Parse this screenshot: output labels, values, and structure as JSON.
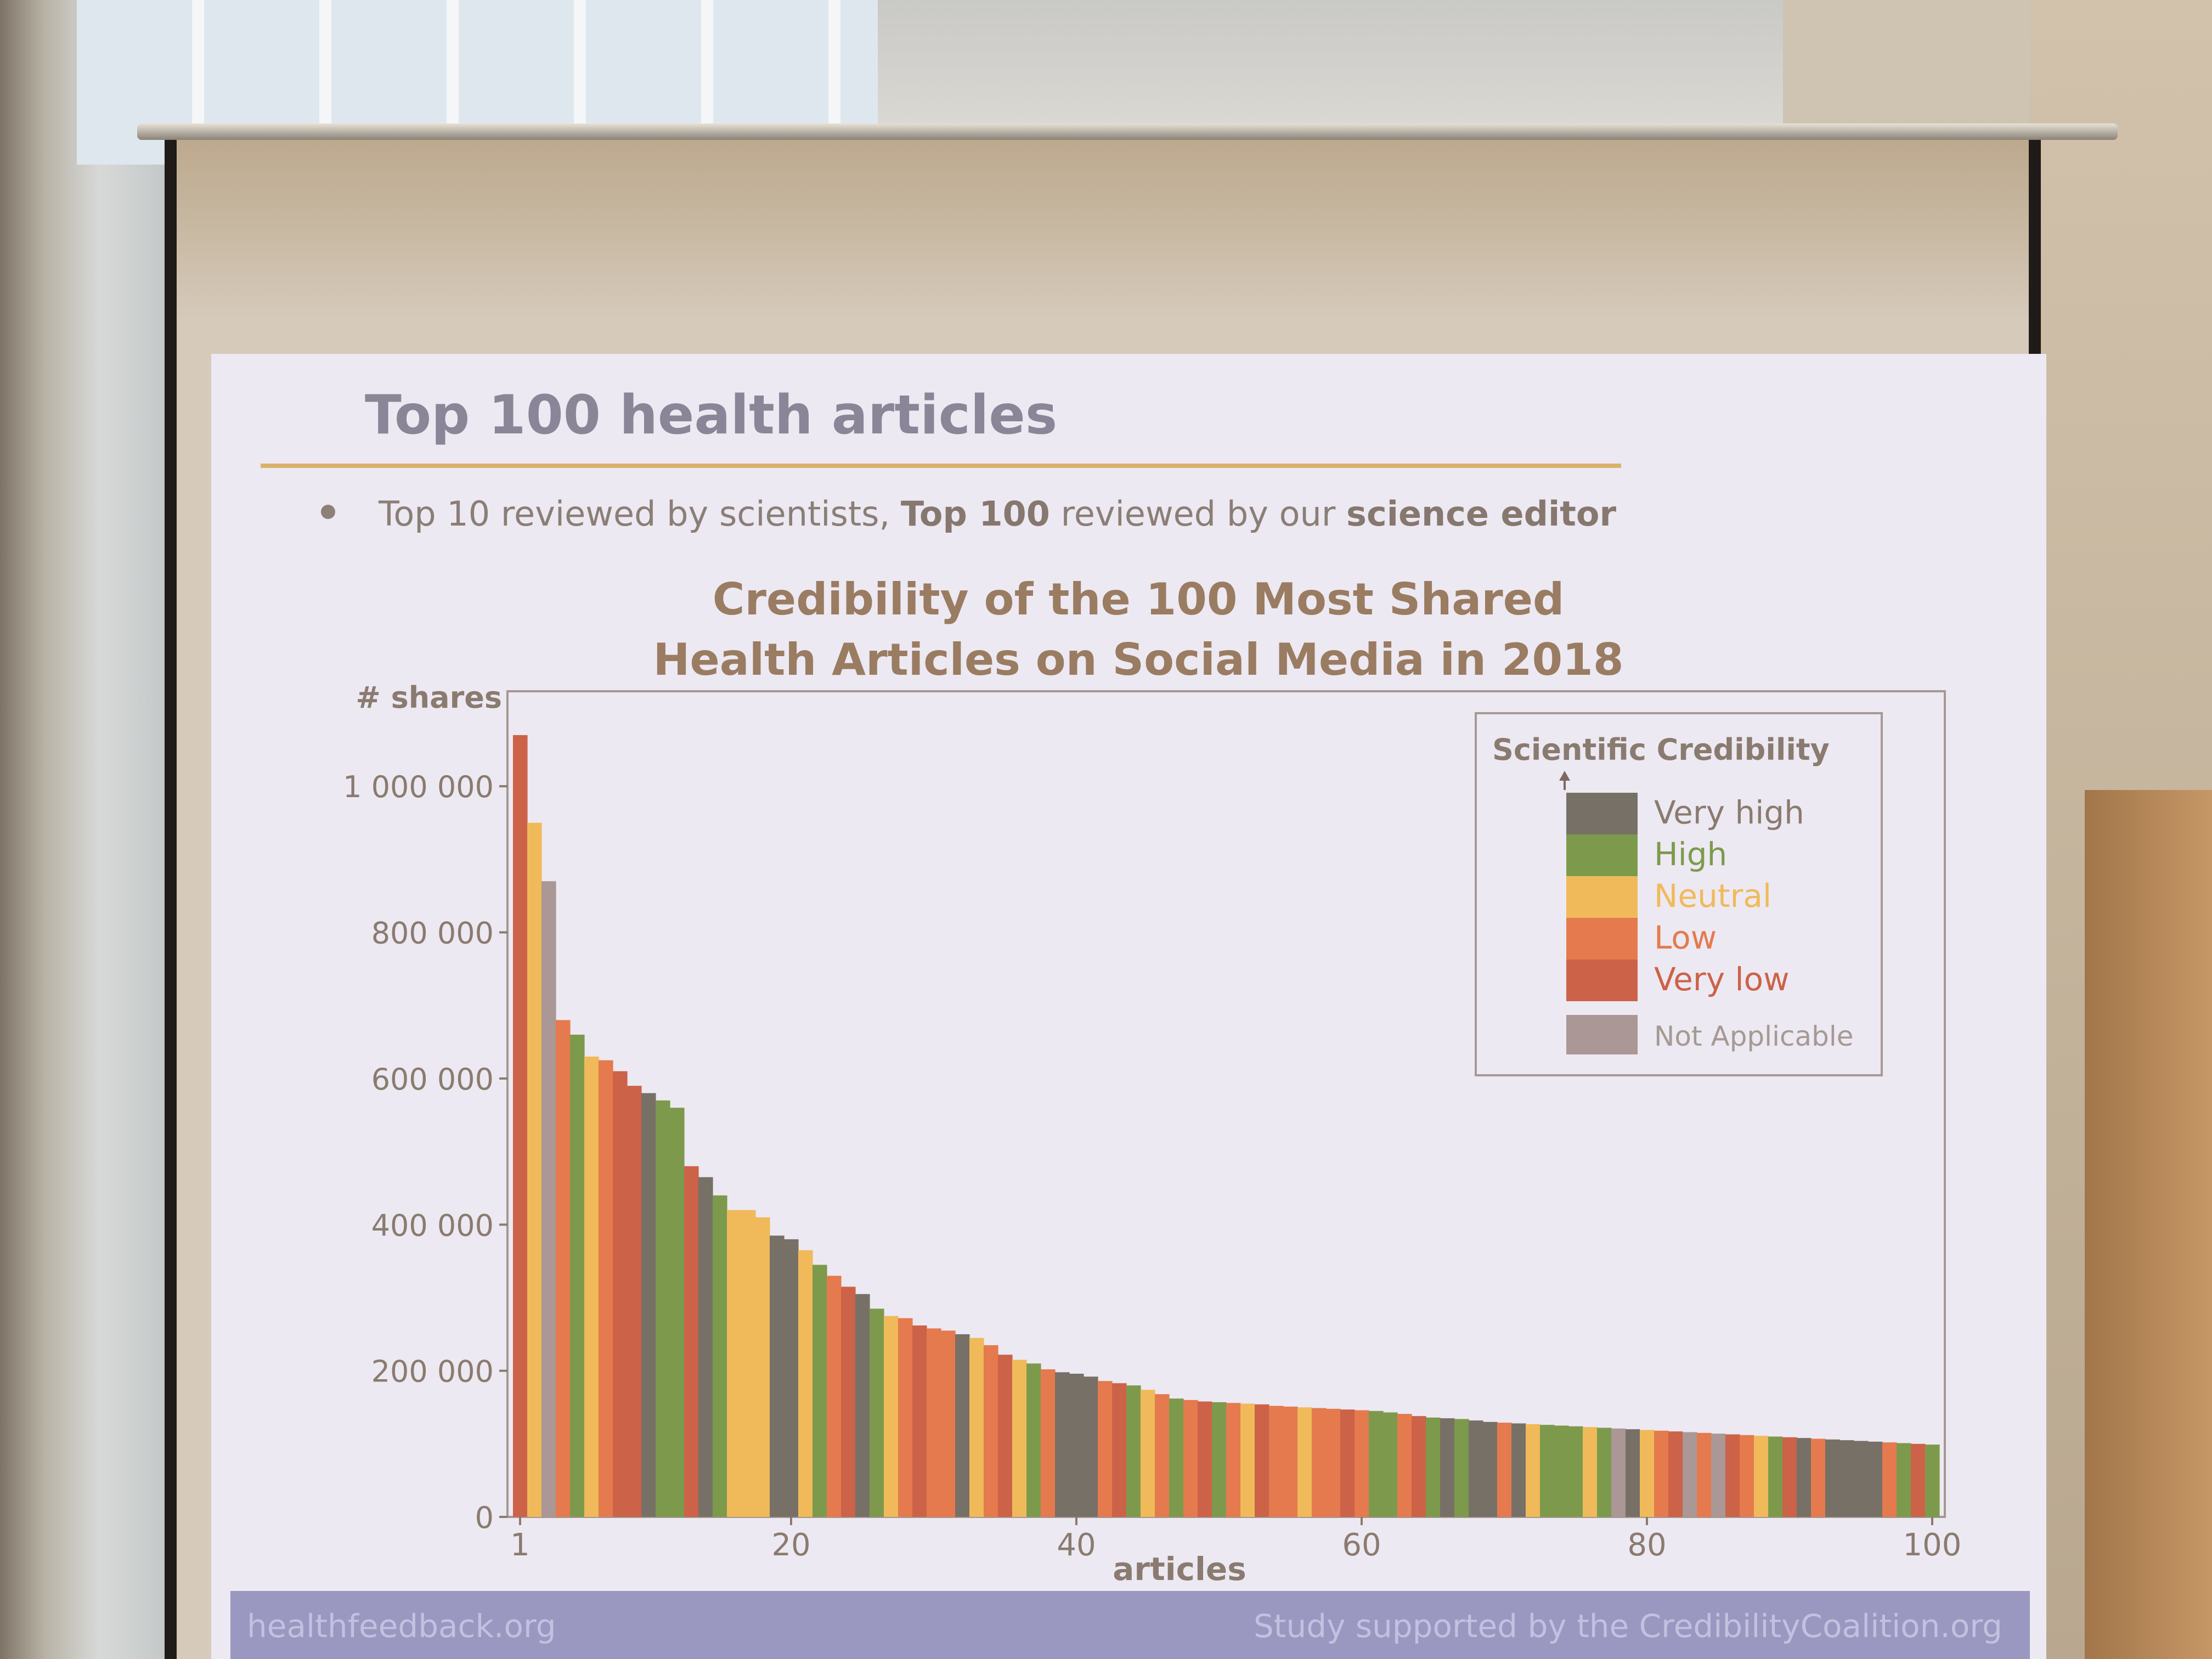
{
  "slide": {
    "title": "Top 100 health articles",
    "bullet_parts": [
      "Top 10 reviewed by scientists, ",
      "Top 100",
      " reviewed by our ",
      "science editor"
    ]
  },
  "footer": {
    "left": "healthfeedback.org",
    "right": "Study supported by the CredibilityCoalition.org"
  },
  "colors": {
    "very_high": "#777067",
    "high": "#7d9a4c",
    "neutral": "#f0ba5a",
    "low": "#e57a4e",
    "very_low": "#cc6248",
    "not_applicable": "#aa9796"
  },
  "chart_data": {
    "type": "bar",
    "title_lines": [
      "Credibility of the 100 Most Shared",
      "Health Articles on Social Media in 2018"
    ],
    "xlabel": "articles",
    "ylabel": "# shares",
    "ylim": [
      0,
      1130000
    ],
    "xlim": [
      1,
      100
    ],
    "y_ticks": [
      0,
      200000,
      400000,
      600000,
      800000,
      1000000
    ],
    "y_tick_labels": [
      "0",
      "200 000",
      "400 000",
      "600 000",
      "800 000",
      "1 000 000"
    ],
    "x_ticks": [
      1,
      20,
      40,
      60,
      80,
      100
    ],
    "x_tick_labels": [
      "1",
      "20",
      "40",
      "60",
      "80",
      "100"
    ],
    "grid": false,
    "legend": {
      "title": "Scientific Credibility",
      "placement": "top-right",
      "items": [
        {
          "label": "Very high",
          "color": "#777067"
        },
        {
          "label": "High",
          "color": "#7d9a4c"
        },
        {
          "label": "Neutral",
          "color": "#f0ba5a"
        },
        {
          "label": "Low",
          "color": "#e57a4e"
        },
        {
          "label": "Very low",
          "color": "#cc6248"
        },
        {
          "label": "Not Applicable",
          "color": "#aa9796"
        }
      ]
    },
    "values": [
      1070000,
      950000,
      870000,
      680000,
      660000,
      630000,
      625000,
      610000,
      590000,
      580000,
      570000,
      560000,
      480000,
      465000,
      440000,
      420000,
      420000,
      410000,
      385000,
      380000,
      365000,
      345000,
      330000,
      315000,
      305000,
      285000,
      275000,
      272000,
      262000,
      258000,
      255000,
      250000,
      245000,
      235000,
      222000,
      215000,
      210000,
      202000,
      198000,
      196000,
      192000,
      186000,
      183000,
      180000,
      174000,
      168000,
      162000,
      160000,
      158000,
      157000,
      156000,
      155000,
      154000,
      152000,
      151000,
      150000,
      149000,
      148000,
      147000,
      146000,
      145000,
      143000,
      141000,
      138000,
      136000,
      135000,
      134000,
      132000,
      130000,
      129000,
      128000,
      127000,
      126000,
      125000,
      124000,
      123000,
      122000,
      121000,
      120000,
      119000,
      118000,
      117000,
      116000,
      115000,
      114000,
      113000,
      112000,
      111000,
      110000,
      109000,
      108000,
      107000,
      106000,
      105000,
      104000,
      103000,
      102000,
      101000,
      100000,
      99000
    ],
    "credibility": [
      "Very low",
      "Neutral",
      "Not Applicable",
      "Low",
      "High",
      "Neutral",
      "Low",
      "Very low",
      "Very low",
      "Very high",
      "High",
      "High",
      "Very low",
      "Very high",
      "High",
      "Neutral",
      "Neutral",
      "Neutral",
      "Very high",
      "Very high",
      "Neutral",
      "High",
      "Low",
      "Very low",
      "Very high",
      "High",
      "Neutral",
      "Low",
      "Very low",
      "Low",
      "Low",
      "Very high",
      "Neutral",
      "Low",
      "Very low",
      "Neutral",
      "High",
      "Low",
      "Very high",
      "Very high",
      "Very high",
      "Low",
      "Very low",
      "High",
      "Neutral",
      "Low",
      "High",
      "Low",
      "Very low",
      "High",
      "Low",
      "Neutral",
      "Very low",
      "Low",
      "Low",
      "Neutral",
      "Low",
      "Low",
      "Very low",
      "Low",
      "High",
      "High",
      "Low",
      "Very low",
      "High",
      "Very high",
      "High",
      "Very high",
      "Very high",
      "Low",
      "Very high",
      "Neutral",
      "High",
      "High",
      "High",
      "Neutral",
      "High",
      "Not Applicable",
      "Very high",
      "Neutral",
      "Low",
      "Very low",
      "Not Applicable",
      "Low",
      "Not Applicable",
      "Very low",
      "Low",
      "Neutral",
      "High",
      "Very low",
      "Very high",
      "Low",
      "Very high",
      "Very high",
      "Very high",
      "Very high",
      "Low",
      "High",
      "Very low",
      "High"
    ]
  }
}
